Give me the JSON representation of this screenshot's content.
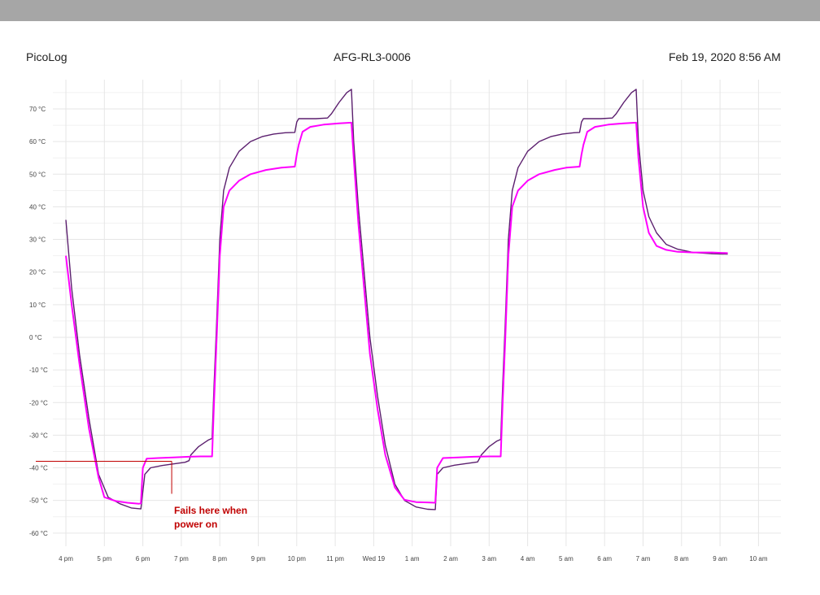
{
  "header": {
    "app_name": "PicoLog",
    "device_name": "AFG-RL3-0006",
    "timestamp": "Feb 19, 2020 8:56 AM"
  },
  "colors": {
    "topbar": "#a6a6a6",
    "series_dark": "#5b1f6e",
    "series_magenta": "#ff00ff",
    "grid": "#e6e6e6",
    "annotation": "#c00000"
  },
  "chart_data": {
    "type": "line",
    "title": "",
    "xlabel": "",
    "ylabel": "",
    "x_unit": "hours from 4 pm",
    "x_ticks": [
      "4 pm",
      "5 pm",
      "6 pm",
      "7 pm",
      "8 pm",
      "9 pm",
      "10 pm",
      "11 pm",
      "Wed 19",
      "1 am",
      "2 am",
      "3 am",
      "4 am",
      "5 am",
      "6 am",
      "7 am",
      "8 am",
      "9 am",
      "10 am"
    ],
    "y_ticks": [
      "70 °C",
      "60 °C",
      "50 °C",
      "40 °C",
      "30 °C",
      "20 °C",
      "10 °C",
      "0 °C",
      "-10 °C",
      "-20 °C",
      "-30 °C",
      "-40 °C",
      "-50 °C",
      "-60 °C"
    ],
    "ylim": [
      -65,
      78
    ],
    "xlim": [
      -0.3,
      18.3
    ],
    "grid": true,
    "legend": "none",
    "series": [
      {
        "color": "#5b1f6e",
        "points": [
          [
            0,
            36
          ],
          [
            0.15,
            15
          ],
          [
            0.35,
            -5
          ],
          [
            0.6,
            -25
          ],
          [
            0.85,
            -42
          ],
          [
            1.1,
            -49
          ],
          [
            1.4,
            -51
          ],
          [
            1.7,
            -52.3
          ],
          [
            1.95,
            -52.6
          ],
          [
            2.05,
            -42
          ],
          [
            2.2,
            -40
          ],
          [
            2.5,
            -39.3
          ],
          [
            2.8,
            -38.8
          ],
          [
            3.1,
            -38.3
          ],
          [
            3.2,
            -37.8
          ],
          [
            3.25,
            -36
          ],
          [
            3.45,
            -33.5
          ],
          [
            3.7,
            -31.5
          ],
          [
            3.8,
            -31
          ],
          [
            3.85,
            -15
          ],
          [
            3.92,
            5
          ],
          [
            4.0,
            30
          ],
          [
            4.1,
            45
          ],
          [
            4.25,
            52
          ],
          [
            4.5,
            57
          ],
          [
            4.8,
            60
          ],
          [
            5.1,
            61.5
          ],
          [
            5.4,
            62.3
          ],
          [
            5.7,
            62.7
          ],
          [
            5.95,
            62.8
          ],
          [
            6.0,
            66
          ],
          [
            6.05,
            67
          ],
          [
            6.5,
            67
          ],
          [
            6.8,
            67.2
          ],
          [
            6.9,
            68.5
          ],
          [
            7.1,
            72
          ],
          [
            7.3,
            75
          ],
          [
            7.42,
            76
          ],
          [
            7.48,
            60
          ],
          [
            7.6,
            40
          ],
          [
            7.75,
            20
          ],
          [
            7.9,
            0
          ],
          [
            8.1,
            -18
          ],
          [
            8.3,
            -33
          ],
          [
            8.55,
            -45
          ],
          [
            8.8,
            -50
          ],
          [
            9.1,
            -52
          ],
          [
            9.4,
            -52.7
          ],
          [
            9.6,
            -52.8
          ],
          [
            9.65,
            -42
          ],
          [
            9.8,
            -40
          ],
          [
            10.1,
            -39.2
          ],
          [
            10.4,
            -38.7
          ],
          [
            10.7,
            -38.2
          ],
          [
            10.8,
            -36
          ],
          [
            11.0,
            -33.5
          ],
          [
            11.2,
            -31.8
          ],
          [
            11.3,
            -31.3
          ],
          [
            11.35,
            -15
          ],
          [
            11.42,
            5
          ],
          [
            11.5,
            30
          ],
          [
            11.6,
            45
          ],
          [
            11.75,
            52
          ],
          [
            12.0,
            57
          ],
          [
            12.3,
            60
          ],
          [
            12.6,
            61.5
          ],
          [
            12.9,
            62.3
          ],
          [
            13.2,
            62.7
          ],
          [
            13.35,
            62.8
          ],
          [
            13.4,
            66
          ],
          [
            13.45,
            67
          ],
          [
            13.9,
            67
          ],
          [
            14.2,
            67.2
          ],
          [
            14.3,
            68.5
          ],
          [
            14.5,
            72
          ],
          [
            14.7,
            75
          ],
          [
            14.82,
            76
          ],
          [
            14.88,
            60
          ],
          [
            15.0,
            45
          ],
          [
            15.15,
            37
          ],
          [
            15.35,
            32
          ],
          [
            15.6,
            28.5
          ],
          [
            15.9,
            27
          ],
          [
            16.3,
            26
          ],
          [
            16.8,
            25.6
          ],
          [
            17.2,
            25.5
          ]
        ]
      },
      {
        "color": "#ff00ff",
        "points": [
          [
            0,
            25
          ],
          [
            0.15,
            10
          ],
          [
            0.35,
            -8
          ],
          [
            0.6,
            -28
          ],
          [
            0.85,
            -43
          ],
          [
            1.0,
            -49
          ],
          [
            1.3,
            -50.2
          ],
          [
            1.6,
            -50.7
          ],
          [
            1.9,
            -51
          ],
          [
            1.95,
            -50.9
          ],
          [
            2.0,
            -40
          ],
          [
            2.1,
            -37.2
          ],
          [
            2.4,
            -37
          ],
          [
            2.8,
            -36.8
          ],
          [
            3.2,
            -36.6
          ],
          [
            3.5,
            -36.5
          ],
          [
            3.8,
            -36.5
          ],
          [
            3.85,
            -20
          ],
          [
            3.92,
            0
          ],
          [
            4.0,
            25
          ],
          [
            4.1,
            40
          ],
          [
            4.25,
            45
          ],
          [
            4.5,
            48
          ],
          [
            4.8,
            50
          ],
          [
            5.2,
            51.3
          ],
          [
            5.6,
            52
          ],
          [
            5.95,
            52.3
          ],
          [
            6.0,
            56
          ],
          [
            6.05,
            59
          ],
          [
            6.15,
            63
          ],
          [
            6.35,
            64.5
          ],
          [
            6.7,
            65.2
          ],
          [
            7.1,
            65.6
          ],
          [
            7.42,
            65.8
          ],
          [
            7.48,
            55
          ],
          [
            7.6,
            35
          ],
          [
            7.75,
            15
          ],
          [
            7.9,
            -5
          ],
          [
            8.1,
            -22
          ],
          [
            8.3,
            -36
          ],
          [
            8.55,
            -46
          ],
          [
            8.8,
            -49.8
          ],
          [
            9.1,
            -50.5
          ],
          [
            9.4,
            -50.6
          ],
          [
            9.6,
            -50.7
          ],
          [
            9.65,
            -40
          ],
          [
            9.8,
            -37
          ],
          [
            10.2,
            -36.8
          ],
          [
            10.6,
            -36.6
          ],
          [
            11.0,
            -36.5
          ],
          [
            11.3,
            -36.5
          ],
          [
            11.35,
            -20
          ],
          [
            11.42,
            0
          ],
          [
            11.5,
            25
          ],
          [
            11.6,
            40
          ],
          [
            11.75,
            45
          ],
          [
            12.0,
            48
          ],
          [
            12.3,
            50
          ],
          [
            12.7,
            51.3
          ],
          [
            13.0,
            52
          ],
          [
            13.35,
            52.3
          ],
          [
            13.4,
            56
          ],
          [
            13.45,
            59
          ],
          [
            13.55,
            63
          ],
          [
            13.75,
            64.5
          ],
          [
            14.1,
            65.2
          ],
          [
            14.5,
            65.6
          ],
          [
            14.82,
            65.8
          ],
          [
            14.88,
            55
          ],
          [
            15.0,
            40
          ],
          [
            15.15,
            32
          ],
          [
            15.35,
            28
          ],
          [
            15.6,
            26.8
          ],
          [
            15.9,
            26.2
          ],
          [
            16.3,
            26
          ],
          [
            16.8,
            26
          ],
          [
            17.2,
            25.8
          ]
        ]
      }
    ],
    "annotation": {
      "lines": [
        "Fails here when",
        "power on"
      ],
      "marker_x": 2.75,
      "marker_y": -38,
      "ref_line_y": -38
    }
  }
}
